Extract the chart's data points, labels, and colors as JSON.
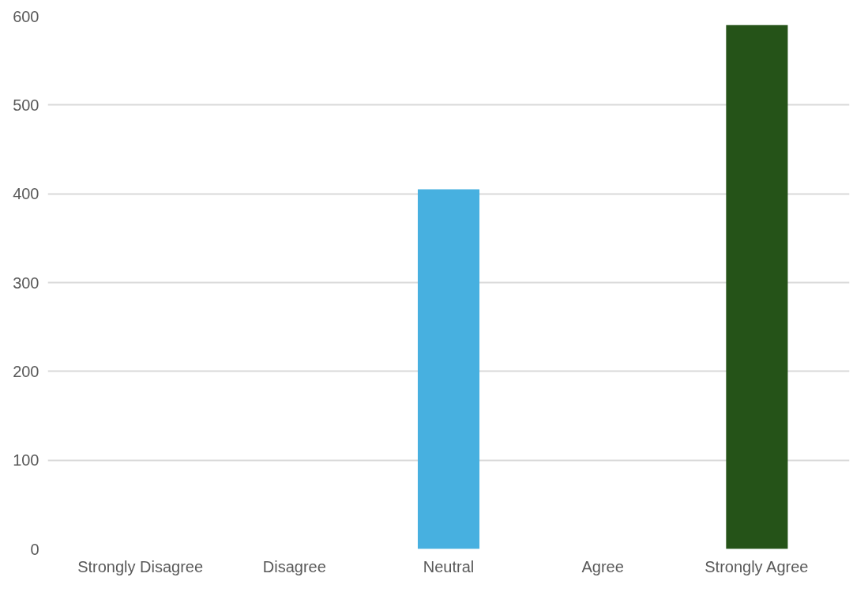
{
  "chart_data": {
    "type": "bar",
    "categories": [
      "Strongly Disagree",
      "Disagree",
      "Neutral",
      "Agree",
      "Strongly Agree"
    ],
    "values": [
      0,
      0,
      405,
      0,
      590
    ],
    "colors": [
      "#c00000",
      "#c39800",
      "#47b0e0",
      "#33a345",
      "#255318"
    ],
    "ylim": [
      0,
      600
    ],
    "yticks": [
      0,
      100,
      200,
      300,
      400,
      500,
      600
    ],
    "grid": "y"
  }
}
